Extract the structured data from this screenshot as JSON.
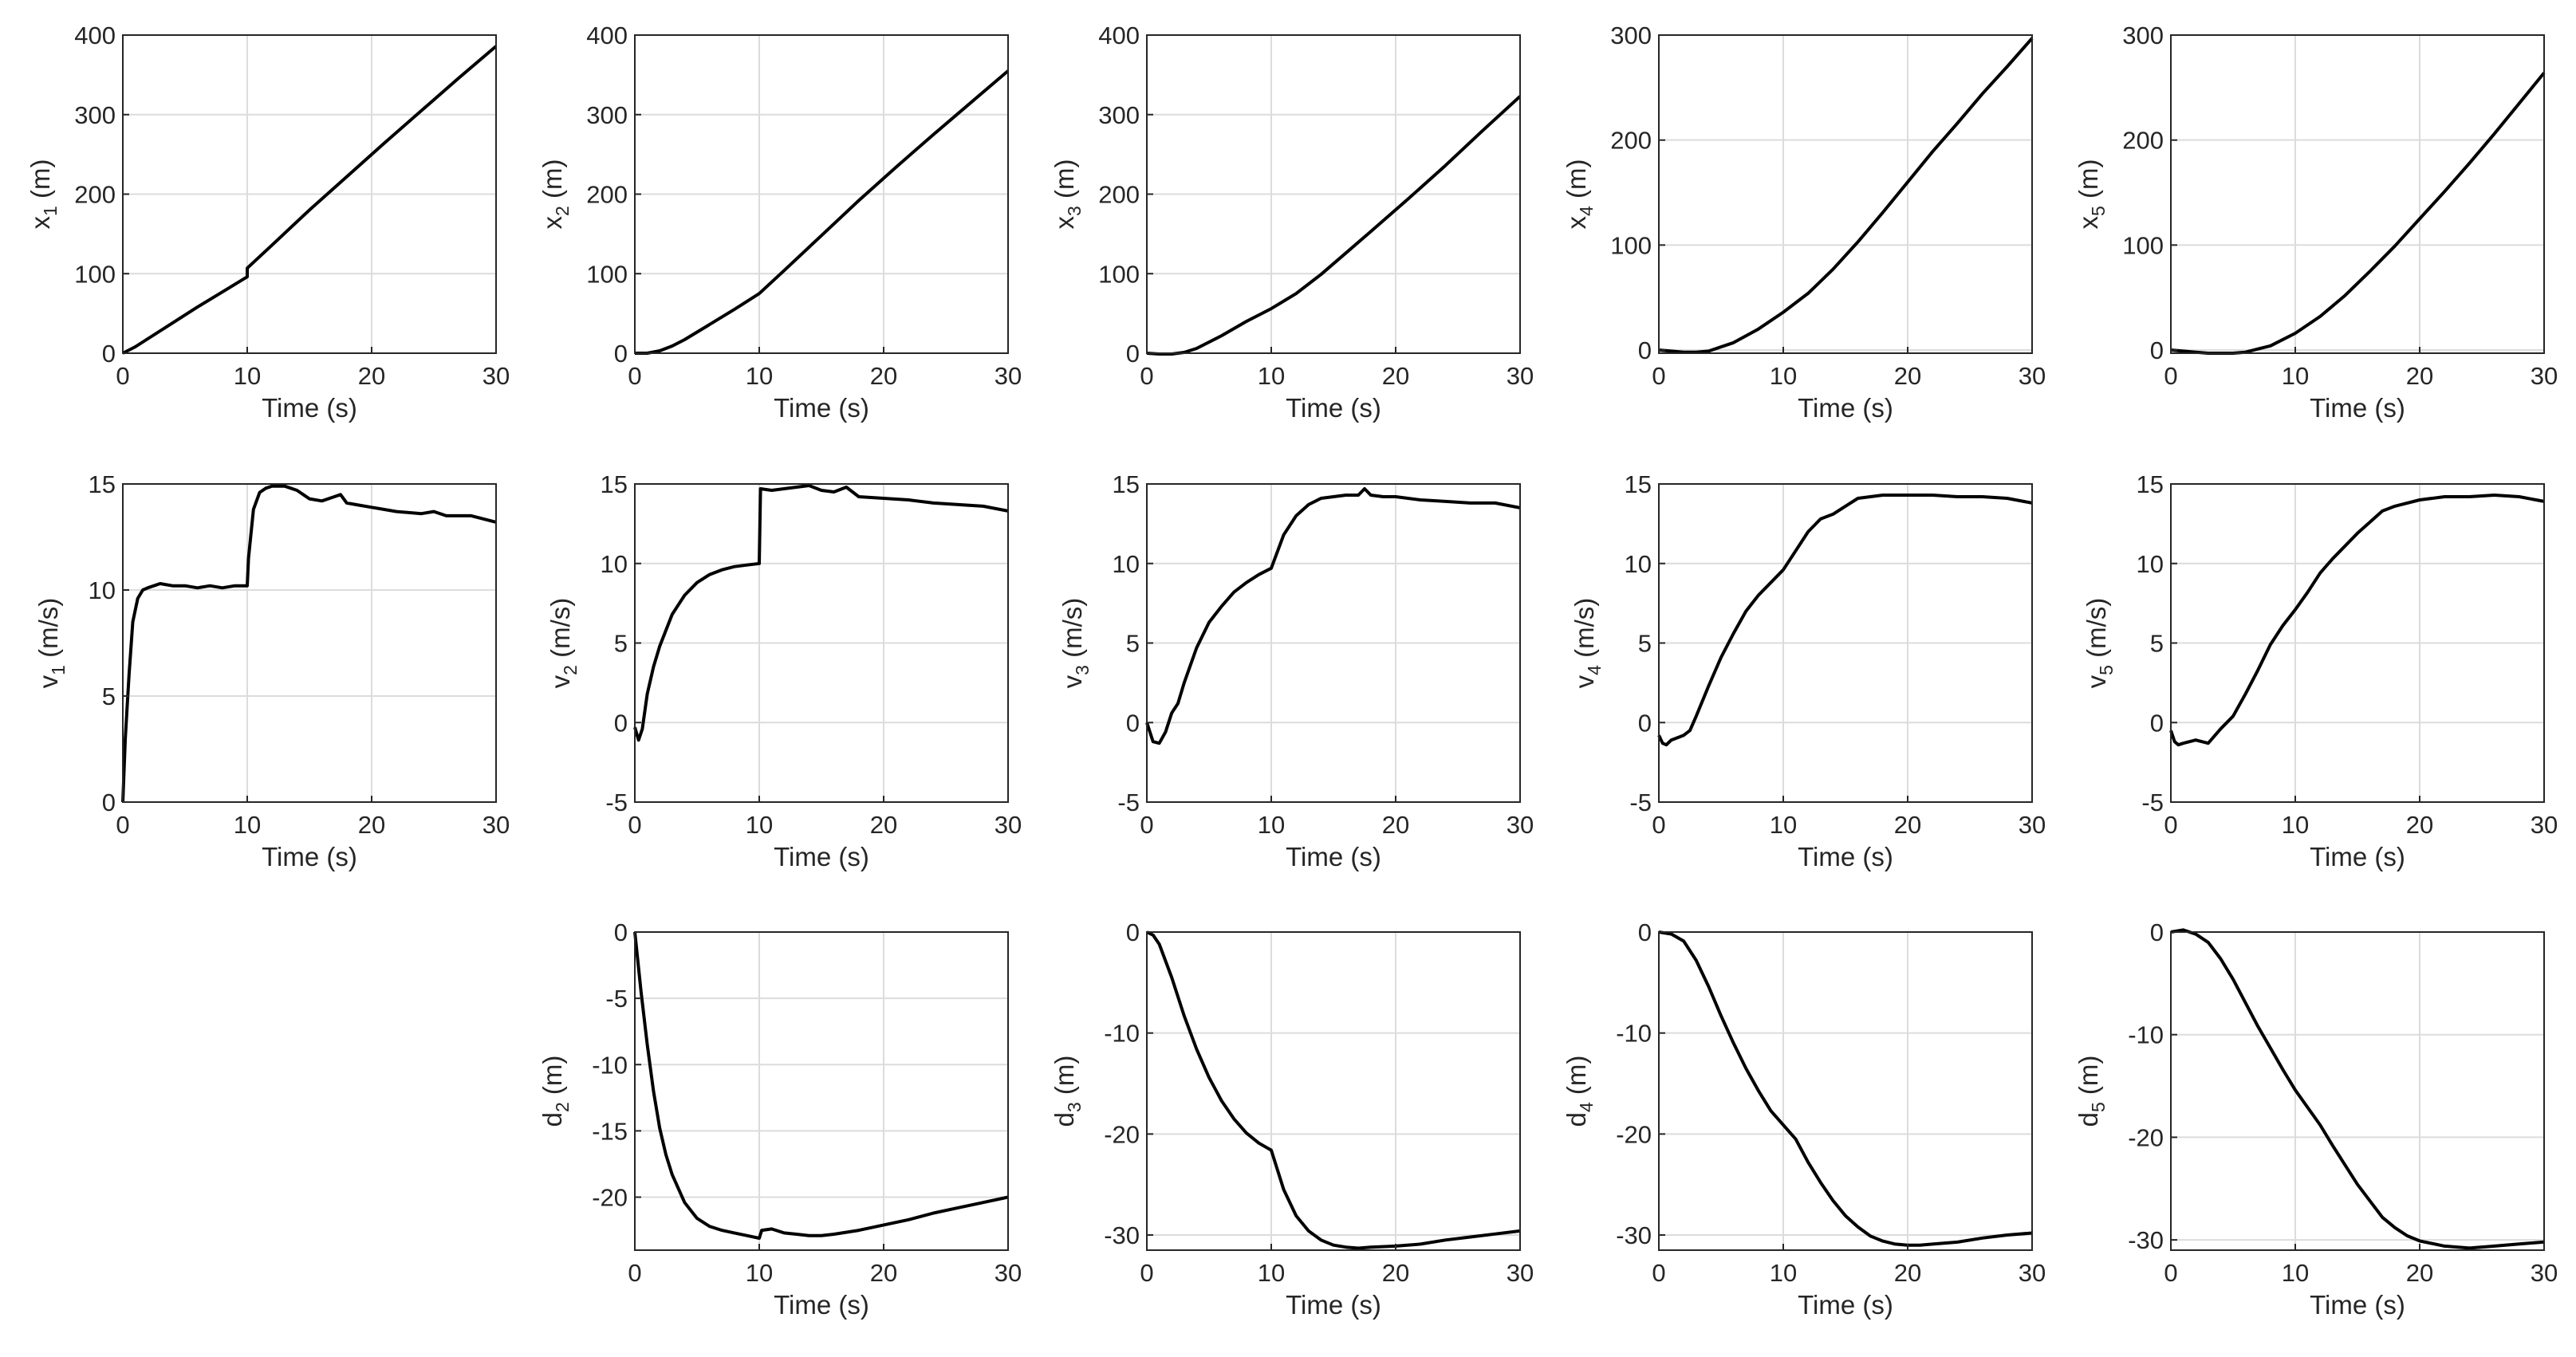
{
  "figure": {
    "background": "#ffffff",
    "line_color": "#000000",
    "grid_color": "#dcdcdc",
    "axis_color": "#262626"
  },
  "chart_data": [
    {
      "id": "x1",
      "type": "line",
      "ylabel": {
        "base": "x",
        "sub": "1",
        "unit": "(m)"
      },
      "xlabel": "Time (s)",
      "xlim": [
        0,
        30
      ],
      "ylim": [
        0,
        400
      ],
      "xticks": [
        "0",
        "10",
        "20",
        "30"
      ],
      "yticks": [
        "0",
        "100",
        "200",
        "300",
        "400"
      ],
      "grid": true,
      "series": [
        {
          "name": "x_1",
          "x": [
            0,
            1,
            2,
            4,
            6,
            8,
            10,
            10,
            12,
            15,
            18,
            21,
            24,
            27,
            30
          ],
          "y": [
            0,
            8,
            18,
            38,
            58,
            77,
            96,
            107,
            136,
            180,
            222,
            264,
            305,
            346,
            386
          ]
        }
      ]
    },
    {
      "id": "x2",
      "type": "line",
      "ylabel": {
        "base": "x",
        "sub": "2",
        "unit": "(m)"
      },
      "xlabel": "Time (s)",
      "xlim": [
        0,
        30
      ],
      "ylim": [
        0,
        400
      ],
      "xticks": [
        "0",
        "10",
        "20",
        "30"
      ],
      "yticks": [
        "0",
        "100",
        "200",
        "300",
        "400"
      ],
      "grid": true,
      "series": [
        {
          "name": "x_2",
          "x": [
            0,
            0.5,
            1,
            2,
            3,
            4,
            6,
            8,
            10,
            12,
            15,
            18,
            21,
            24,
            27,
            30
          ],
          "y": [
            0,
            0,
            0,
            3,
            9,
            17,
            36,
            55,
            75,
            104,
            148,
            192,
            234,
            275,
            315,
            355
          ]
        }
      ]
    },
    {
      "id": "x3",
      "type": "line",
      "ylabel": {
        "base": "x",
        "sub": "3",
        "unit": "(m)"
      },
      "xlabel": "Time (s)",
      "xlim": [
        0,
        30
      ],
      "ylim": [
        0,
        400
      ],
      "xticks": [
        "0",
        "10",
        "20",
        "30"
      ],
      "yticks": [
        "0",
        "100",
        "200",
        "300",
        "400"
      ],
      "grid": true,
      "series": [
        {
          "name": "x_3",
          "x": [
            0,
            1,
            2,
            3,
            4,
            6,
            8,
            10,
            12,
            14,
            16,
            18,
            21,
            24,
            27,
            30
          ],
          "y": [
            0,
            -1,
            -1,
            1,
            6,
            22,
            40,
            56,
            75,
            99,
            126,
            153,
            194,
            236,
            280,
            323
          ]
        }
      ]
    },
    {
      "id": "x4",
      "type": "line",
      "ylabel": {
        "base": "x",
        "sub": "4",
        "unit": "(m)"
      },
      "xlabel": "Time (s)",
      "xlim": [
        0,
        30
      ],
      "ylim": [
        -3,
        300
      ],
      "xticks": [
        "0",
        "10",
        "20",
        "30"
      ],
      "yticks": [
        "0",
        "100",
        "200",
        "300"
      ],
      "grid": true,
      "series": [
        {
          "name": "x_4",
          "x": [
            0,
            1,
            2,
            3,
            4,
            6,
            8,
            10,
            12,
            14,
            16,
            18,
            20,
            22,
            24,
            26,
            28,
            30
          ],
          "y": [
            0,
            -1,
            -2,
            -2,
            -1,
            7,
            20,
            36,
            54,
            77,
            103,
            131,
            160,
            189,
            216,
            244,
            270,
            297
          ]
        }
      ]
    },
    {
      "id": "x5",
      "type": "line",
      "ylabel": {
        "base": "x",
        "sub": "5",
        "unit": "(m)"
      },
      "xlabel": "Time (s)",
      "xlim": [
        0,
        30
      ],
      "ylim": [
        -3,
        300
      ],
      "xticks": [
        "0",
        "10",
        "20",
        "30"
      ],
      "yticks": [
        "0",
        "100",
        "200",
        "300"
      ],
      "grid": true,
      "series": [
        {
          "name": "x_5",
          "x": [
            0,
            1,
            2,
            3,
            4,
            5,
            6,
            7,
            8,
            10,
            12,
            14,
            16,
            18,
            20,
            22,
            24,
            26,
            28,
            30
          ],
          "y": [
            0,
            -1,
            -2,
            -3,
            -3,
            -3,
            -2,
            1,
            4,
            16,
            32,
            52,
            75,
            99,
            125,
            151,
            178,
            206,
            235,
            264
          ]
        }
      ]
    },
    {
      "id": "v1",
      "type": "line",
      "ylabel": {
        "base": "v",
        "sub": "1",
        "unit": "(m/s)"
      },
      "xlabel": "Time (s)",
      "xlim": [
        0,
        30
      ],
      "ylim": [
        0,
        15
      ],
      "xticks": [
        "0",
        "10",
        "20",
        "30"
      ],
      "yticks": [
        "0",
        "5",
        "10",
        "15"
      ],
      "grid": true,
      "series": [
        {
          "name": "v_1",
          "x": [
            0,
            0.2,
            0.5,
            0.8,
            1.2,
            1.6,
            2,
            3,
            4,
            5,
            6,
            7,
            8,
            9,
            10,
            10.1,
            10.5,
            11,
            11.5,
            12,
            13,
            14,
            15,
            16,
            17,
            17.5,
            18,
            19,
            20,
            22,
            24,
            25,
            26,
            28,
            30
          ],
          "y": [
            0,
            3,
            6,
            8.5,
            9.6,
            10,
            10.1,
            10.3,
            10.2,
            10.2,
            10.1,
            10.2,
            10.1,
            10.2,
            10.2,
            11.5,
            13.8,
            14.6,
            14.8,
            14.9,
            14.9,
            14.7,
            14.3,
            14.2,
            14.4,
            14.5,
            14.1,
            14,
            13.9,
            13.7,
            13.6,
            13.7,
            13.5,
            13.5,
            13.2
          ]
        }
      ]
    },
    {
      "id": "v2",
      "type": "line",
      "ylabel": {
        "base": "v",
        "sub": "2",
        "unit": "(m/s)"
      },
      "xlabel": "Time (s)",
      "xlim": [
        0,
        30
      ],
      "ylim": [
        -5,
        15
      ],
      "xticks": [
        "0",
        "10",
        "20",
        "30"
      ],
      "yticks": [
        "-5",
        "0",
        "5",
        "10",
        "15"
      ],
      "grid": true,
      "series": [
        {
          "name": "v_2",
          "x": [
            0,
            0.3,
            0.6,
            1,
            1.5,
            2,
            3,
            4,
            5,
            6,
            7,
            8,
            9,
            10,
            10.1,
            11,
            12,
            13,
            14,
            15,
            16,
            17,
            18,
            20,
            22,
            24,
            26,
            28,
            30
          ],
          "y": [
            -0.3,
            -1.1,
            -0.4,
            1.8,
            3.5,
            4.8,
            6.8,
            8,
            8.8,
            9.3,
            9.6,
            9.8,
            9.9,
            10,
            14.7,
            14.6,
            14.7,
            14.8,
            14.9,
            14.6,
            14.5,
            14.8,
            14.2,
            14.1,
            14,
            13.8,
            13.7,
            13.6,
            13.3
          ]
        }
      ]
    },
    {
      "id": "v3",
      "type": "line",
      "ylabel": {
        "base": "v",
        "sub": "3",
        "unit": "(m/s)"
      },
      "xlabel": "Time (s)",
      "xlim": [
        0,
        30
      ],
      "ylim": [
        -5,
        15
      ],
      "xticks": [
        "0",
        "10",
        "20",
        "30"
      ],
      "yticks": [
        "-5",
        "0",
        "5",
        "10",
        "15"
      ],
      "grid": true,
      "series": [
        {
          "name": "v_3",
          "x": [
            0,
            0.5,
            1,
            1.5,
            2,
            2.5,
            3,
            4,
            5,
            6,
            7,
            8,
            9,
            10,
            11,
            12,
            13,
            14,
            15,
            16,
            17,
            17.5,
            18,
            19,
            20,
            22,
            24,
            26,
            28,
            30
          ],
          "y": [
            0,
            -1.2,
            -1.3,
            -0.6,
            0.6,
            1.2,
            2.5,
            4.7,
            6.3,
            7.3,
            8.2,
            8.8,
            9.3,
            9.7,
            11.8,
            13,
            13.7,
            14.1,
            14.2,
            14.3,
            14.3,
            14.7,
            14.3,
            14.2,
            14.2,
            14,
            13.9,
            13.8,
            13.8,
            13.5
          ]
        }
      ]
    },
    {
      "id": "v4",
      "type": "line",
      "ylabel": {
        "base": "v",
        "sub": "4",
        "unit": "(m/s)"
      },
      "xlabel": "Time (s)",
      "xlim": [
        0,
        30
      ],
      "ylim": [
        -5,
        15
      ],
      "xticks": [
        "0",
        "10",
        "20",
        "30"
      ],
      "yticks": [
        "-5",
        "0",
        "5",
        "10",
        "15"
      ],
      "grid": true,
      "series": [
        {
          "name": "v_4",
          "x": [
            0,
            0.3,
            0.6,
            1,
            2,
            2.5,
            3,
            4,
            5,
            6,
            7,
            8,
            9,
            10,
            11,
            12,
            13,
            14,
            15,
            16,
            17,
            18,
            20,
            22,
            24,
            26,
            28,
            30
          ],
          "y": [
            -0.8,
            -1.3,
            -1.4,
            -1.1,
            -0.8,
            -0.5,
            0.4,
            2.3,
            4.1,
            5.6,
            7,
            8,
            8.8,
            9.6,
            10.8,
            12,
            12.8,
            13.1,
            13.6,
            14.1,
            14.2,
            14.3,
            14.3,
            14.3,
            14.2,
            14.2,
            14.1,
            13.8
          ]
        }
      ]
    },
    {
      "id": "v5",
      "type": "line",
      "ylabel": {
        "base": "v",
        "sub": "5",
        "unit": "(m/s)"
      },
      "xlabel": "Time (s)",
      "xlim": [
        0,
        30
      ],
      "ylim": [
        -5,
        15
      ],
      "xticks": [
        "0",
        "10",
        "20",
        "30"
      ],
      "yticks": [
        "-5",
        "0",
        "5",
        "10",
        "15"
      ],
      "grid": true,
      "series": [
        {
          "name": "v_5",
          "x": [
            0,
            0.3,
            0.6,
            1,
            2,
            3,
            4,
            5,
            6,
            7,
            8,
            9,
            10,
            11,
            12,
            13,
            14,
            15,
            16,
            17,
            18,
            20,
            22,
            24,
            26,
            28,
            30
          ],
          "y": [
            -0.5,
            -1.2,
            -1.4,
            -1.3,
            -1.1,
            -1.3,
            -0.4,
            0.4,
            1.8,
            3.3,
            4.9,
            6.1,
            7.1,
            8.2,
            9.4,
            10.3,
            11.1,
            11.9,
            12.6,
            13.3,
            13.6,
            14,
            14.2,
            14.2,
            14.3,
            14.2,
            13.9
          ]
        }
      ]
    },
    {
      "id": "d2",
      "type": "line",
      "ylabel": {
        "base": "d",
        "sub": "2",
        "unit": "(m)"
      },
      "xlabel": "Time (s)",
      "xlim": [
        0,
        30
      ],
      "ylim": [
        -24,
        0
      ],
      "xticks": [
        "0",
        "10",
        "20",
        "30"
      ],
      "yticks": [
        "-20",
        "-15",
        "-10",
        "-5",
        "0"
      ],
      "grid": true,
      "series": [
        {
          "name": "d_2",
          "x": [
            0,
            0.5,
            1,
            1.5,
            2,
            2.5,
            3,
            4,
            5,
            6,
            7,
            8,
            9,
            10,
            10.2,
            11,
            12,
            13,
            14,
            15,
            16,
            18,
            20,
            22,
            24,
            26,
            28,
            30
          ],
          "y": [
            0,
            -4.5,
            -8.5,
            -12,
            -14.8,
            -16.8,
            -18.3,
            -20.4,
            -21.6,
            -22.2,
            -22.5,
            -22.7,
            -22.9,
            -23.1,
            -22.5,
            -22.4,
            -22.7,
            -22.8,
            -22.9,
            -22.9,
            -22.8,
            -22.5,
            -22.1,
            -21.7,
            -21.2,
            -20.8,
            -20.4,
            -20
          ]
        }
      ]
    },
    {
      "id": "d3",
      "type": "line",
      "ylabel": {
        "base": "d",
        "sub": "3",
        "unit": "(m)"
      },
      "xlabel": "Time (s)",
      "xlim": [
        0,
        30
      ],
      "ylim": [
        -31.5,
        0
      ],
      "xticks": [
        "0",
        "10",
        "20",
        "30"
      ],
      "yticks": [
        "-30",
        "-20",
        "-10",
        "0"
      ],
      "grid": true,
      "series": [
        {
          "name": "d_3",
          "x": [
            0,
            0.5,
            1,
            2,
            3,
            4,
            5,
            6,
            7,
            8,
            9,
            10,
            11,
            12,
            13,
            14,
            15,
            16,
            17,
            18,
            20,
            22,
            24,
            26,
            28,
            30
          ],
          "y": [
            0,
            -0.3,
            -1.2,
            -4.5,
            -8.3,
            -11.6,
            -14.4,
            -16.7,
            -18.5,
            -19.9,
            -20.9,
            -21.6,
            -25.5,
            -28.1,
            -29.6,
            -30.5,
            -31,
            -31.2,
            -31.3,
            -31.2,
            -31.1,
            -30.9,
            -30.5,
            -30.2,
            -29.9,
            -29.6
          ]
        }
      ]
    },
    {
      "id": "d4",
      "type": "line",
      "ylabel": {
        "base": "d",
        "sub": "4",
        "unit": "(m)"
      },
      "xlabel": "Time (s)",
      "xlim": [
        0,
        30
      ],
      "ylim": [
        -31.5,
        0
      ],
      "xticks": [
        "0",
        "10",
        "20",
        "30"
      ],
      "yticks": [
        "-30",
        "-20",
        "-10",
        "0"
      ],
      "grid": true,
      "series": [
        {
          "name": "d_4",
          "x": [
            0,
            1,
            2,
            3,
            4,
            5,
            6,
            7,
            8,
            9,
            10,
            11,
            12,
            13,
            14,
            15,
            16,
            17,
            18,
            19,
            20,
            21,
            22,
            24,
            26,
            28,
            30
          ],
          "y": [
            0,
            -0.2,
            -0.9,
            -2.8,
            -5.4,
            -8.3,
            -11,
            -13.5,
            -15.7,
            -17.7,
            -19.1,
            -20.5,
            -22.8,
            -24.8,
            -26.6,
            -28.1,
            -29.2,
            -30.1,
            -30.6,
            -30.9,
            -31,
            -31,
            -30.9,
            -30.7,
            -30.3,
            -30,
            -29.8
          ]
        }
      ]
    },
    {
      "id": "d5",
      "type": "line",
      "ylabel": {
        "base": "d",
        "sub": "5",
        "unit": "(m)"
      },
      "xlabel": "Time (s)",
      "xlim": [
        0,
        30
      ],
      "ylim": [
        -31,
        0
      ],
      "xticks": [
        "0",
        "10",
        "20",
        "30"
      ],
      "yticks": [
        "-30",
        "-20",
        "-10",
        "0"
      ],
      "grid": true,
      "series": [
        {
          "name": "d_5",
          "x": [
            0,
            1,
            2,
            3,
            4,
            5,
            6,
            7,
            8,
            9,
            10,
            11,
            12,
            13,
            14,
            15,
            16,
            17,
            18,
            19,
            20,
            22,
            24,
            26,
            28,
            30
          ],
          "y": [
            0,
            0.2,
            -0.2,
            -1,
            -2.6,
            -4.6,
            -6.9,
            -9.2,
            -11.3,
            -13.4,
            -15.4,
            -17.1,
            -18.8,
            -20.8,
            -22.7,
            -24.6,
            -26.2,
            -27.8,
            -28.8,
            -29.6,
            -30.1,
            -30.6,
            -30.8,
            -30.6,
            -30.4,
            -30.2
          ]
        }
      ]
    }
  ]
}
